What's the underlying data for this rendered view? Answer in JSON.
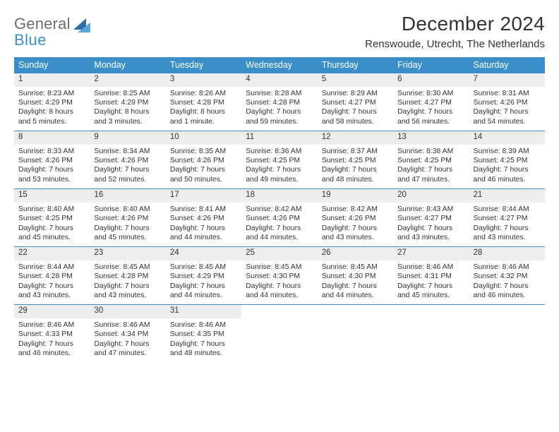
{
  "logo": {
    "line1": "General",
    "line2": "Blue"
  },
  "title": "December 2024",
  "subtitle": "Renswoude, Utrecht, The Netherlands",
  "colors": {
    "accent": "#3a8fc8",
    "dayNumBg": "#ededed",
    "text": "#333333",
    "logoGray": "#6d6d6d"
  },
  "weekdays": [
    "Sunday",
    "Monday",
    "Tuesday",
    "Wednesday",
    "Thursday",
    "Friday",
    "Saturday"
  ],
  "days": [
    {
      "n": 1,
      "sunrise": "8:23 AM",
      "sunset": "4:29 PM",
      "daylight": "8 hours and 5 minutes."
    },
    {
      "n": 2,
      "sunrise": "8:25 AM",
      "sunset": "4:29 PM",
      "daylight": "8 hours and 3 minutes."
    },
    {
      "n": 3,
      "sunrise": "8:26 AM",
      "sunset": "4:28 PM",
      "daylight": "8 hours and 1 minute."
    },
    {
      "n": 4,
      "sunrise": "8:28 AM",
      "sunset": "4:28 PM",
      "daylight": "7 hours and 59 minutes."
    },
    {
      "n": 5,
      "sunrise": "8:29 AM",
      "sunset": "4:27 PM",
      "daylight": "7 hours and 58 minutes."
    },
    {
      "n": 6,
      "sunrise": "8:30 AM",
      "sunset": "4:27 PM",
      "daylight": "7 hours and 56 minutes."
    },
    {
      "n": 7,
      "sunrise": "8:31 AM",
      "sunset": "4:26 PM",
      "daylight": "7 hours and 54 minutes."
    },
    {
      "n": 8,
      "sunrise": "8:33 AM",
      "sunset": "4:26 PM",
      "daylight": "7 hours and 53 minutes."
    },
    {
      "n": 9,
      "sunrise": "8:34 AM",
      "sunset": "4:26 PM",
      "daylight": "7 hours and 52 minutes."
    },
    {
      "n": 10,
      "sunrise": "8:35 AM",
      "sunset": "4:26 PM",
      "daylight": "7 hours and 50 minutes."
    },
    {
      "n": 11,
      "sunrise": "8:36 AM",
      "sunset": "4:25 PM",
      "daylight": "7 hours and 49 minutes."
    },
    {
      "n": 12,
      "sunrise": "8:37 AM",
      "sunset": "4:25 PM",
      "daylight": "7 hours and 48 minutes."
    },
    {
      "n": 13,
      "sunrise": "8:38 AM",
      "sunset": "4:25 PM",
      "daylight": "7 hours and 47 minutes."
    },
    {
      "n": 14,
      "sunrise": "8:39 AM",
      "sunset": "4:25 PM",
      "daylight": "7 hours and 46 minutes."
    },
    {
      "n": 15,
      "sunrise": "8:40 AM",
      "sunset": "4:25 PM",
      "daylight": "7 hours and 45 minutes."
    },
    {
      "n": 16,
      "sunrise": "8:40 AM",
      "sunset": "4:26 PM",
      "daylight": "7 hours and 45 minutes."
    },
    {
      "n": 17,
      "sunrise": "8:41 AM",
      "sunset": "4:26 PM",
      "daylight": "7 hours and 44 minutes."
    },
    {
      "n": 18,
      "sunrise": "8:42 AM",
      "sunset": "4:26 PM",
      "daylight": "7 hours and 44 minutes."
    },
    {
      "n": 19,
      "sunrise": "8:42 AM",
      "sunset": "4:26 PM",
      "daylight": "7 hours and 43 minutes."
    },
    {
      "n": 20,
      "sunrise": "8:43 AM",
      "sunset": "4:27 PM",
      "daylight": "7 hours and 43 minutes."
    },
    {
      "n": 21,
      "sunrise": "8:44 AM",
      "sunset": "4:27 PM",
      "daylight": "7 hours and 43 minutes."
    },
    {
      "n": 22,
      "sunrise": "8:44 AM",
      "sunset": "4:28 PM",
      "daylight": "7 hours and 43 minutes."
    },
    {
      "n": 23,
      "sunrise": "8:45 AM",
      "sunset": "4:28 PM",
      "daylight": "7 hours and 43 minutes."
    },
    {
      "n": 24,
      "sunrise": "8:45 AM",
      "sunset": "4:29 PM",
      "daylight": "7 hours and 44 minutes."
    },
    {
      "n": 25,
      "sunrise": "8:45 AM",
      "sunset": "4:30 PM",
      "daylight": "7 hours and 44 minutes."
    },
    {
      "n": 26,
      "sunrise": "8:45 AM",
      "sunset": "4:30 PM",
      "daylight": "7 hours and 44 minutes."
    },
    {
      "n": 27,
      "sunrise": "8:46 AM",
      "sunset": "4:31 PM",
      "daylight": "7 hours and 45 minutes."
    },
    {
      "n": 28,
      "sunrise": "8:46 AM",
      "sunset": "4:32 PM",
      "daylight": "7 hours and 46 minutes."
    },
    {
      "n": 29,
      "sunrise": "8:46 AM",
      "sunset": "4:33 PM",
      "daylight": "7 hours and 46 minutes."
    },
    {
      "n": 30,
      "sunrise": "8:46 AM",
      "sunset": "4:34 PM",
      "daylight": "7 hours and 47 minutes."
    },
    {
      "n": 31,
      "sunrise": "8:46 AM",
      "sunset": "4:35 PM",
      "daylight": "7 hours and 48 minutes."
    }
  ],
  "labels": {
    "sunrise": "Sunrise:",
    "sunset": "Sunset:",
    "daylight": "Daylight:"
  },
  "firstDayOffset": 0
}
